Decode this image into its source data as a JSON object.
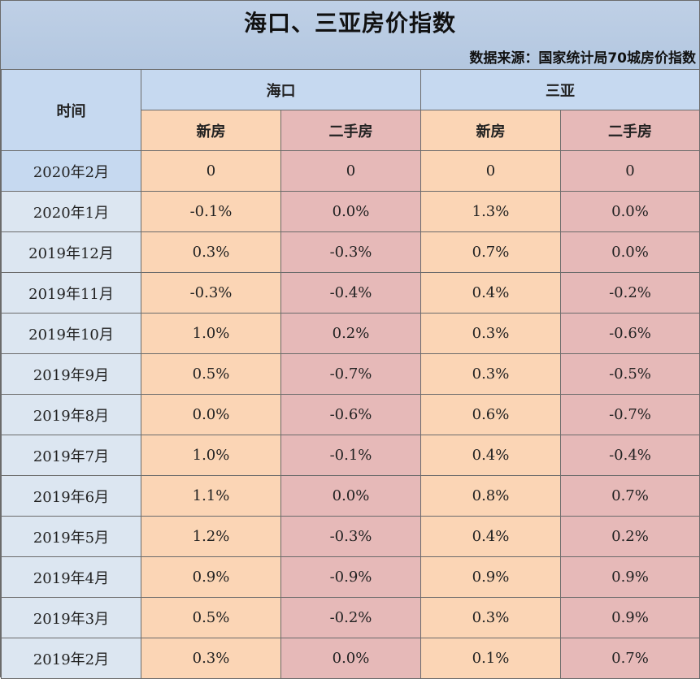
{
  "title": "海口、三亚房价指数",
  "source": "数据来源：国家统计局70城房价指数",
  "header": {
    "time_label": "时间",
    "cities": [
      "海口",
      "三亚"
    ],
    "sub_new": "新房",
    "sub_used": "二手房"
  },
  "colors": {
    "header_blue": "#c6d9f0",
    "date_blue": "#dce6f1",
    "new_house": "#fbd5b5",
    "second_hand": "#e6b9b8"
  },
  "chart_data": {
    "type": "table",
    "title": "海口、三亚房价指数",
    "subtitle": "数据来源：国家统计局70城房价指数",
    "columns": [
      "时间",
      "海口 新房",
      "海口 二手房",
      "三亚 新房",
      "三亚 二手房"
    ],
    "rows": [
      [
        "2020年2月",
        "0",
        "0",
        "0",
        "0"
      ],
      [
        "2020年1月",
        "-0.1%",
        "0.0%",
        "1.3%",
        "0.0%"
      ],
      [
        "2019年12月",
        "0.3%",
        "-0.3%",
        "0.7%",
        "0.0%"
      ],
      [
        "2019年11月",
        "-0.3%",
        "-0.4%",
        "0.4%",
        "-0.2%"
      ],
      [
        "2019年10月",
        "1.0%",
        "0.2%",
        "0.3%",
        "-0.6%"
      ],
      [
        "2019年9月",
        "0.5%",
        "-0.7%",
        "0.3%",
        "-0.5%"
      ],
      [
        "2019年8月",
        "0.0%",
        "-0.6%",
        "0.6%",
        "-0.7%"
      ],
      [
        "2019年7月",
        "1.0%",
        "-0.1%",
        "0.4%",
        "-0.4%"
      ],
      [
        "2019年6月",
        "1.1%",
        "0.0%",
        "0.8%",
        "0.7%"
      ],
      [
        "2019年5月",
        "1.2%",
        "-0.3%",
        "0.4%",
        "0.2%"
      ],
      [
        "2019年4月",
        "0.9%",
        "-0.9%",
        "0.9%",
        "0.9%"
      ],
      [
        "2019年3月",
        "0.5%",
        "-0.2%",
        "0.3%",
        "0.9%"
      ],
      [
        "2019年2月",
        "0.3%",
        "0.0%",
        "0.1%",
        "0.7%"
      ]
    ]
  }
}
